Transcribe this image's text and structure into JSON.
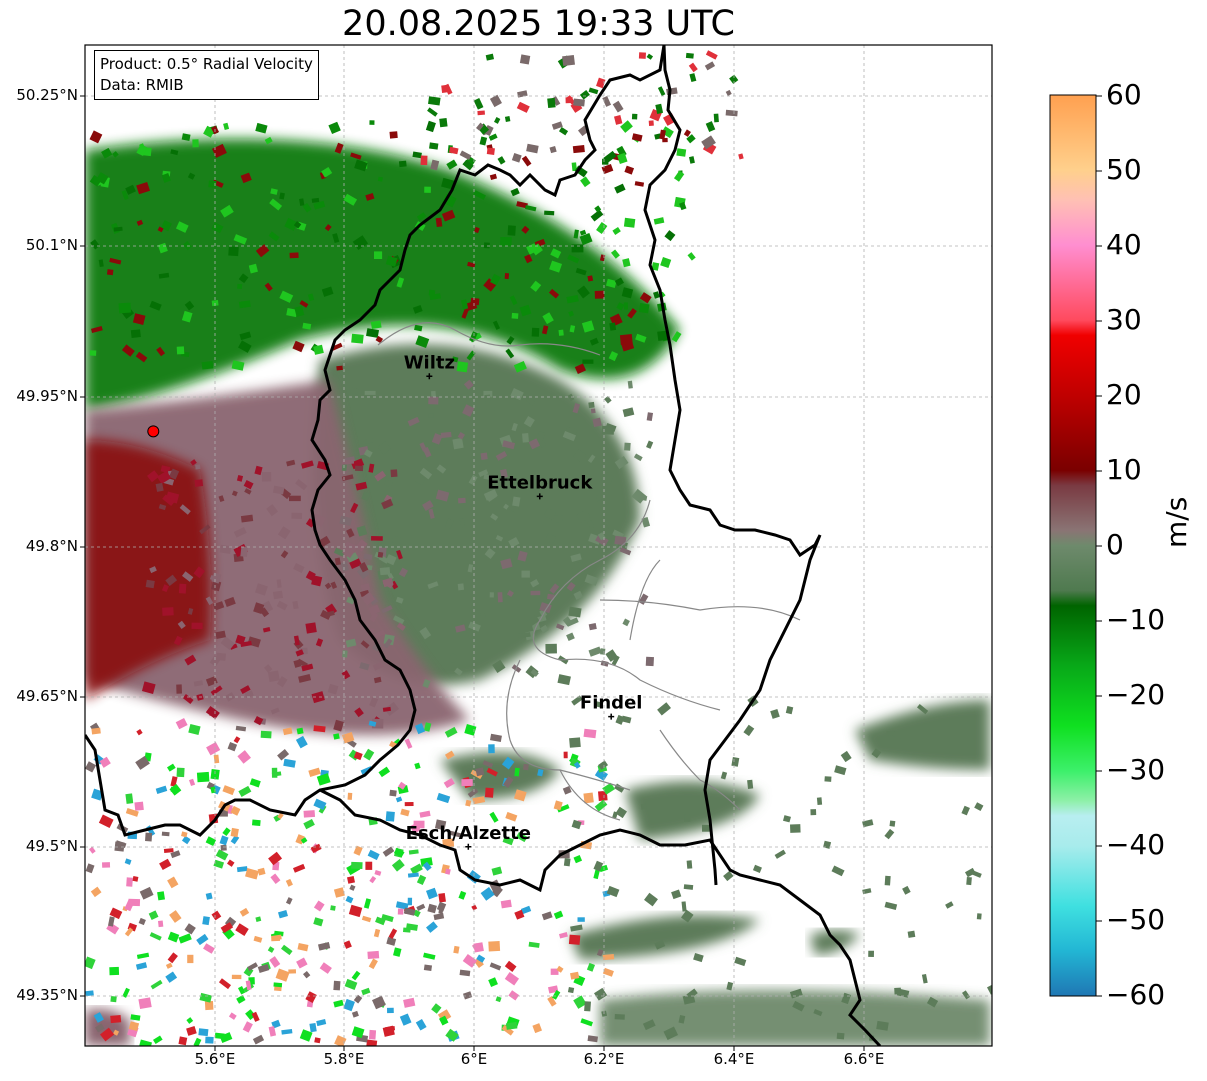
{
  "title": "20.08.2025 19:33 UTC",
  "info_box": {
    "line1": "Product: 0.5° Radial Velocity",
    "line2": "Data: RMIB"
  },
  "lat_labels": [
    "50.25°N",
    "50.1°N",
    "49.95°N",
    "49.8°N",
    "49.65°N",
    "49.5°N",
    "49.35°N"
  ],
  "lon_labels": [
    "5.6°E",
    "5.8°E",
    "6°E",
    "6.2°E",
    "6.4°E",
    "6.6°E"
  ],
  "cities": [
    {
      "name": "Wiltz",
      "lon": 5.93,
      "lat": 49.97
    },
    {
      "name": "Ettelbruck",
      "lon": 6.1,
      "lat": 49.85
    },
    {
      "name": "Findel",
      "lon": 6.21,
      "lat": 49.63
    },
    {
      "name": "Esch/Alzette",
      "lon": 5.99,
      "lat": 49.5
    }
  ],
  "radar_site": {
    "lon": 5.505,
    "lat": 49.915
  },
  "colorbar": {
    "unit": "m/s",
    "ticks": [
      "60",
      "50",
      "40",
      "30",
      "20",
      "10",
      "0",
      "−10",
      "−20",
      "−30",
      "−40",
      "−50",
      "−60"
    ],
    "range": [
      -60,
      60
    ],
    "stops": [
      {
        "v": -60,
        "c": "#1f77b4"
      },
      {
        "v": -54,
        "c": "#22b6d4"
      },
      {
        "v": -48,
        "c": "#3fe0e0"
      },
      {
        "v": -40,
        "c": "#a8ecec"
      },
      {
        "v": -36,
        "c": "#b8eef0"
      },
      {
        "v": -34,
        "c": "#8ef0a8"
      },
      {
        "v": -30,
        "c": "#3cf06a"
      },
      {
        "v": -24,
        "c": "#0fe020"
      },
      {
        "v": -16,
        "c": "#08a818"
      },
      {
        "v": -8,
        "c": "#006400"
      },
      {
        "v": -6,
        "c": "#4f7a4f"
      },
      {
        "v": 0,
        "c": "#6e8a6c"
      },
      {
        "v": 2,
        "c": "#8a7474"
      },
      {
        "v": 8,
        "c": "#7a3a42"
      },
      {
        "v": 10,
        "c": "#7a0000"
      },
      {
        "v": 20,
        "c": "#c00000"
      },
      {
        "v": 28,
        "c": "#f00000"
      },
      {
        "v": 30,
        "c": "#ff4a5e"
      },
      {
        "v": 40,
        "c": "#ff8ed0"
      },
      {
        "v": 46,
        "c": "#ffc0b4"
      },
      {
        "v": 50,
        "c": "#ffd08c"
      },
      {
        "v": 60,
        "c": "#ffa050"
      }
    ]
  },
  "colors": {
    "border": "#000000",
    "canton_lines": "#888888",
    "grid": "#b0b0b0",
    "radar_dot": "#ff0000"
  }
}
